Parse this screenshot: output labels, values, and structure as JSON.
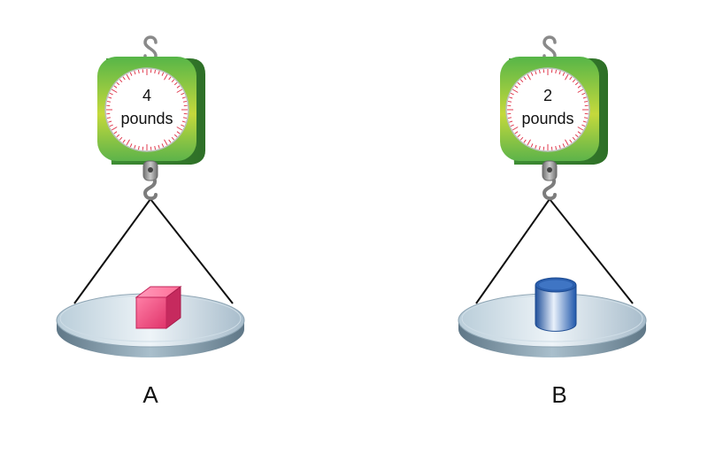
{
  "scales": [
    {
      "label": "A",
      "reading_value": "4",
      "reading_unit": "pounds",
      "object": "cube",
      "object_color": "#e8507e"
    },
    {
      "label": "B",
      "reading_value": "2",
      "reading_unit": "pounds",
      "object": "cylinder",
      "object_color": "#2d6bb5"
    }
  ],
  "colors": {
    "scale_body_top": "#6fc44d",
    "scale_body_bottom": "#b8d63a",
    "dial_ticks": "#e03b4f",
    "hook": "#8a8a8a",
    "pan": "#9fb6c6"
  }
}
